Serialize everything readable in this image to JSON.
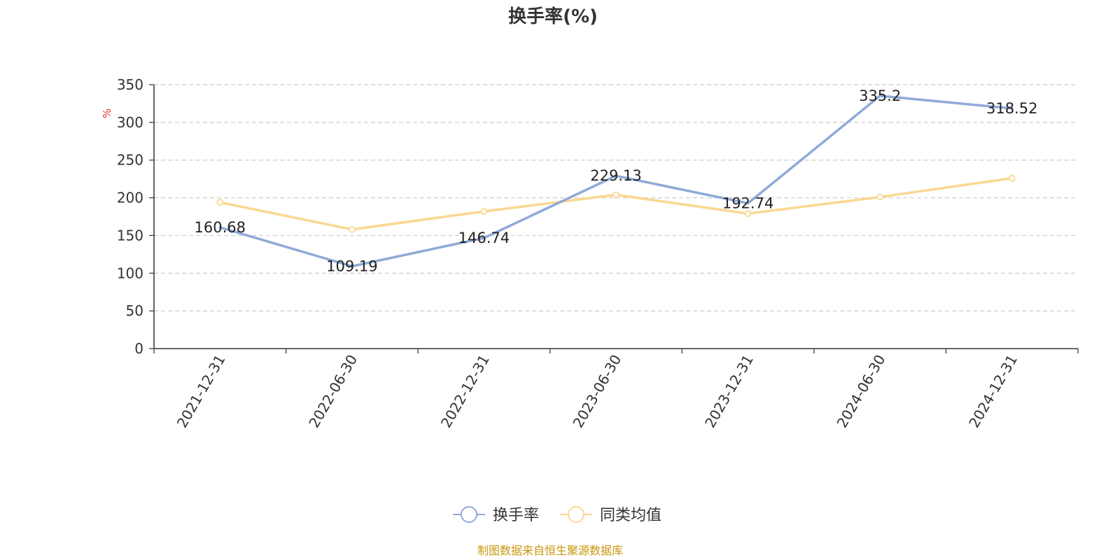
{
  "chart_data": {
    "type": "line",
    "title": "换手率(%)",
    "ylabel": "%",
    "xlabel": "",
    "ylim": [
      0,
      350
    ],
    "yticks": [
      0,
      50,
      100,
      150,
      200,
      250,
      300,
      350
    ],
    "grid": true,
    "legend_position": "bottom-center",
    "categories": [
      "2021-12-31",
      "2022-06-30",
      "2022-12-31",
      "2023-06-30",
      "2023-12-31",
      "2024-06-30",
      "2024-12-31"
    ],
    "series": [
      {
        "name": "换手率",
        "values": [
          160.68,
          109.19,
          146.74,
          229.13,
          192.74,
          335.2,
          318.52
        ],
        "data_labels": [
          "160.68",
          "109.19",
          "146.74",
          "229.13",
          "192.74",
          "335.2",
          "318.52"
        ],
        "color": "#8eaad8"
      },
      {
        "name": "同类均值",
        "values": [
          194,
          158,
          182,
          204,
          179,
          201,
          226
        ],
        "color": "#fad890"
      }
    ],
    "source": "制图数据来自恒生聚源数据库",
    "colors": {
      "title": "#333333",
      "axis": "#333333",
      "grid": "#cccccc",
      "ylabel": "#e03030",
      "source": "#c8960c"
    }
  }
}
